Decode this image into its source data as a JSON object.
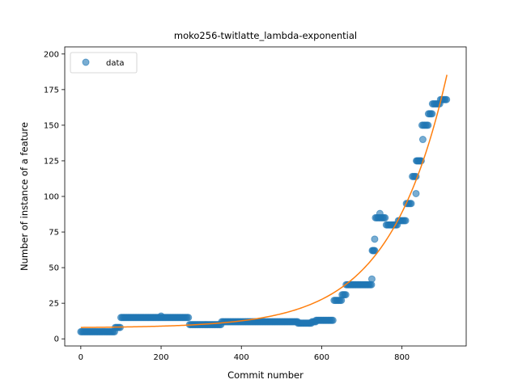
{
  "chart_data": {
    "type": "scatter",
    "title": "moko256-twitlatte_lambda-exponential",
    "xlabel": "Commit number",
    "ylabel": "Number of instance of a feature",
    "xlim": [
      -40,
      960
    ],
    "ylim": [
      -5,
      205
    ],
    "xticks": [
      0,
      200,
      400,
      600,
      800
    ],
    "yticks": [
      0,
      25,
      50,
      75,
      100,
      125,
      150,
      175,
      200
    ],
    "grid": false,
    "legend_position": "top-left",
    "series": [
      {
        "name": "data",
        "kind": "scatter",
        "color": "#1f77b4",
        "alpha": 0.6,
        "segments": [
          {
            "x_start": 0,
            "x_end": 85,
            "step": 3,
            "y": 5
          },
          {
            "x_start": 86,
            "x_end": 99,
            "step": 3,
            "y": 8
          },
          {
            "x_start": 100,
            "x_end": 270,
            "step": 3,
            "y": 15
          },
          {
            "x_start": 271,
            "x_end": 350,
            "step": 3,
            "y": 10
          },
          {
            "x_start": 351,
            "x_end": 540,
            "step": 3,
            "y": 12
          },
          {
            "x_start": 541,
            "x_end": 575,
            "step": 3,
            "y": 11
          },
          {
            "x_start": 576,
            "x_end": 585,
            "step": 3,
            "y": 12
          },
          {
            "x_start": 586,
            "x_end": 630,
            "step": 3,
            "y": 13
          },
          {
            "x_start": 631,
            "x_end": 650,
            "step": 3,
            "y": 27
          },
          {
            "x_start": 651,
            "x_end": 660,
            "step": 3,
            "y": 31
          },
          {
            "x_start": 661,
            "x_end": 725,
            "step": 3,
            "y": 38
          },
          {
            "x_start": 726,
            "x_end": 733,
            "step": 2,
            "y": 62
          },
          {
            "x_start": 734,
            "x_end": 760,
            "step": 3,
            "y": 85
          },
          {
            "x_start": 761,
            "x_end": 790,
            "step": 3,
            "y": 80
          },
          {
            "x_start": 791,
            "x_end": 810,
            "step": 3,
            "y": 83
          },
          {
            "x_start": 811,
            "x_end": 825,
            "step": 3,
            "y": 95
          },
          {
            "x_start": 826,
            "x_end": 835,
            "step": 3,
            "y": 114
          },
          {
            "x_start": 836,
            "x_end": 848,
            "step": 2,
            "y": 125
          },
          {
            "x_start": 850,
            "x_end": 865,
            "step": 3,
            "y": 150
          },
          {
            "x_start": 866,
            "x_end": 875,
            "step": 3,
            "y": 158
          },
          {
            "x_start": 876,
            "x_end": 895,
            "step": 3,
            "y": 165
          },
          {
            "x_start": 896,
            "x_end": 912,
            "step": 3,
            "y": 168
          }
        ],
        "extra_points": [
          {
            "x": 200,
            "y": 16
          },
          {
            "x": 725,
            "y": 42
          },
          {
            "x": 732,
            "y": 70
          },
          {
            "x": 745,
            "y": 88
          },
          {
            "x": 835,
            "y": 102
          },
          {
            "x": 852,
            "y": 140
          }
        ]
      },
      {
        "name": "",
        "kind": "line",
        "color": "#ff7f0e",
        "model": "exponential",
        "a": 0.3,
        "b": 0.007,
        "c": 7.7,
        "x_range": [
          0,
          912
        ]
      }
    ]
  }
}
